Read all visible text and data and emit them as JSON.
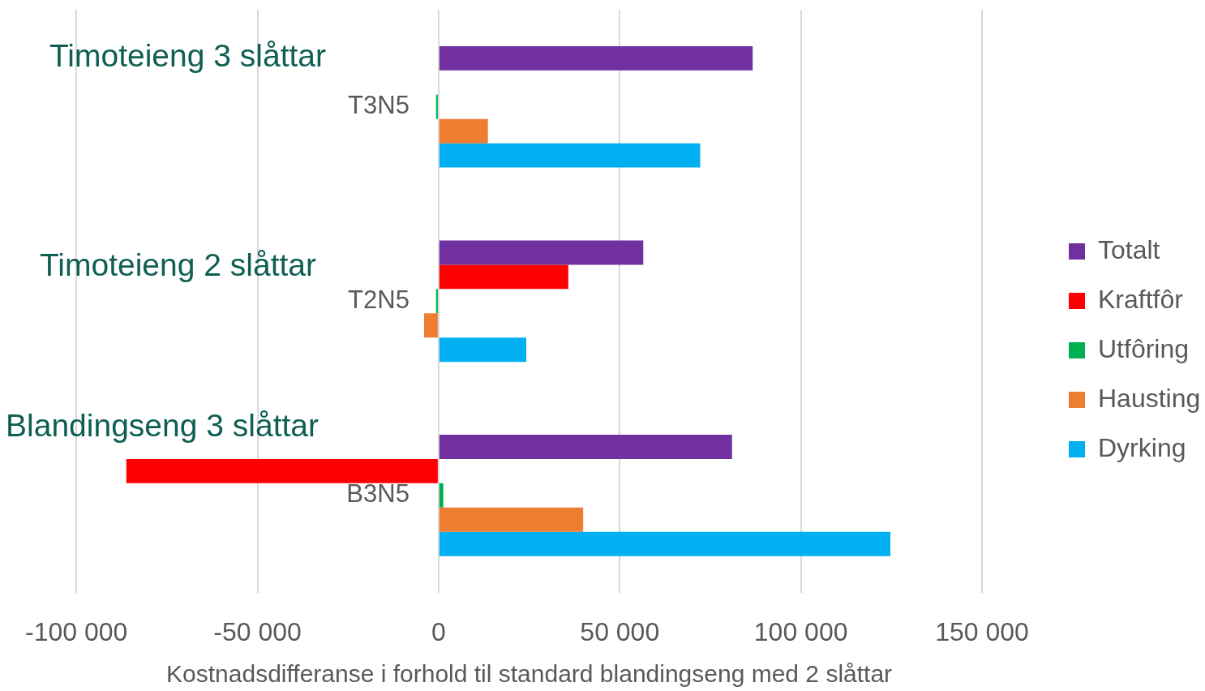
{
  "chart_data": {
    "type": "bar",
    "orientation": "horizontal",
    "categories": [
      "T3N5",
      "T2N5",
      "B3N5"
    ],
    "series": [
      {
        "name": "Totalt",
        "color": "#7030a0",
        "values": [
          86700,
          56500,
          81000
        ]
      },
      {
        "name": "Kraftfôr",
        "color": "#ff0000",
        "values": [
          0,
          35800,
          -86200
        ]
      },
      {
        "name": "Utfôring",
        "color": "#00b050",
        "values": [
          -700,
          -700,
          1300
        ]
      },
      {
        "name": "Hausting",
        "color": "#ed7d31",
        "values": [
          13600,
          -4000,
          39900
        ]
      },
      {
        "name": "Dyrking",
        "color": "#00b0f0",
        "values": [
          72200,
          24200,
          124700
        ]
      }
    ],
    "xlim": [
      -100000,
      150000
    ],
    "xticks": [
      {
        "value": -100000,
        "label": "-100 000"
      },
      {
        "value": -50000,
        "label": "-50 000"
      },
      0,
      {
        "value": 50000,
        "label": "50 000"
      },
      {
        "value": 100000,
        "label": "100 000"
      },
      {
        "value": 150000,
        "label": "150 000"
      }
    ],
    "xlabel": "Kostnadsdifferanse i forhold til standard blandingseng med 2 slåttar",
    "annotations": [
      "Timoteieng 3 slåttar",
      "Timoteieng 2 slåttar",
      "Blandingseng 3 slåttar"
    ],
    "legend": "right",
    "grid": "x"
  }
}
